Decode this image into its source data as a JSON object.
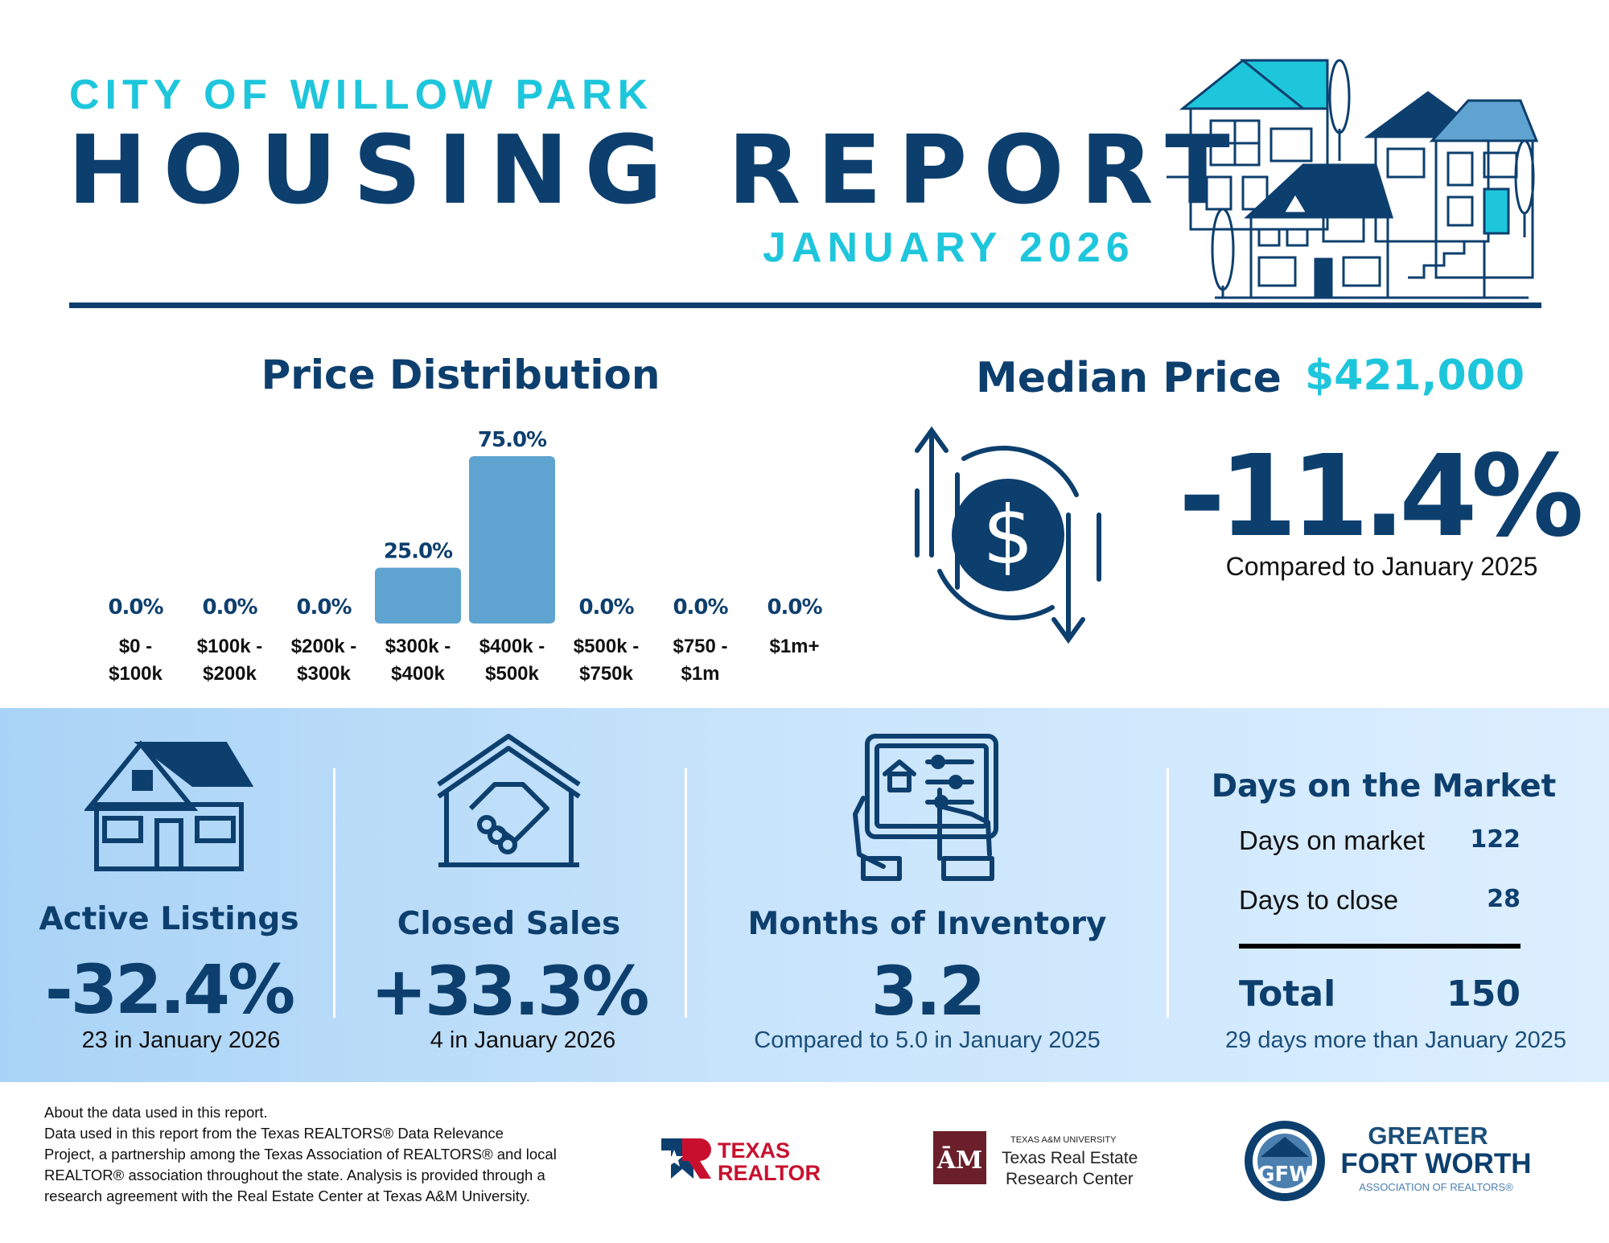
{
  "header": {
    "city": "CITY OF WILLOW PARK",
    "title": "HOUSING REPORT",
    "month": "JANUARY 2026"
  },
  "price_distribution": {
    "title": "Price Distribution"
  },
  "chart_data": {
    "type": "bar",
    "categories": [
      [
        "$0 -",
        "$100k"
      ],
      [
        "$100k -",
        "$200k"
      ],
      [
        "$200k -",
        "$300k"
      ],
      [
        "$300k -",
        "$400k"
      ],
      [
        "$400k -",
        "$500k"
      ],
      [
        "$500k -",
        "$750k"
      ],
      [
        "$750 -",
        "$1m"
      ],
      [
        "$1m+"
      ]
    ],
    "values": [
      0.0,
      0.0,
      0.0,
      25.0,
      75.0,
      0.0,
      0.0,
      0.0
    ],
    "value_labels": [
      "0.0%",
      "0.0%",
      "0.0%",
      "25.0%",
      "75.0%",
      "0.0%",
      "0.0%",
      "0.0%"
    ],
    "bar_color": "#5fa3d0",
    "ylim": [
      0,
      75
    ]
  },
  "median": {
    "label": "Median Price",
    "value": "$421,000",
    "change": "-11.4%",
    "compare": "Compared to January 2025"
  },
  "stats": {
    "active": {
      "title": "Active Listings",
      "value": "-32.4%",
      "sub": "23 in January 2026"
    },
    "closed": {
      "title": "Closed Sales",
      "value": "+33.3%",
      "sub": "4 in January 2026"
    },
    "inventory": {
      "title": "Months of Inventory",
      "value": "3.2",
      "sub": "Compared to 5.0 in January 2025"
    }
  },
  "days_on_market": {
    "title": "Days on the Market",
    "rows": [
      {
        "label": "Days on market",
        "value": "122"
      },
      {
        "label": "Days to close",
        "value": "28"
      }
    ],
    "total_label": "Total",
    "total_value": "150",
    "note": "29 days more than January 2025"
  },
  "footer": {
    "about": [
      "About the data used in this report.",
      "Data used in this report from the Texas REALTORS® Data Relevance",
      "Project, a partnership among the Texas Association of REALTORS® and local",
      "REALTOR® association throughout the state. Analysis is provided through a",
      "research agreement with the Real Estate Center at Texas A&M University."
    ],
    "logos": {
      "texas_realtors": [
        "TEXAS",
        "REALTORS"
      ],
      "tamu_small": "TEXAS A&M UNIVERSITY",
      "tamu_name": [
        "Texas Real Estate",
        "Research Center"
      ],
      "gfw": [
        "GREATER",
        "FORT WORTH",
        "ASSOCIATION OF REALTORS®"
      ]
    }
  },
  "colors": {
    "navy": "#0d3f6e",
    "cyan": "#1ec6dc",
    "bar": "#5fa3d0"
  }
}
